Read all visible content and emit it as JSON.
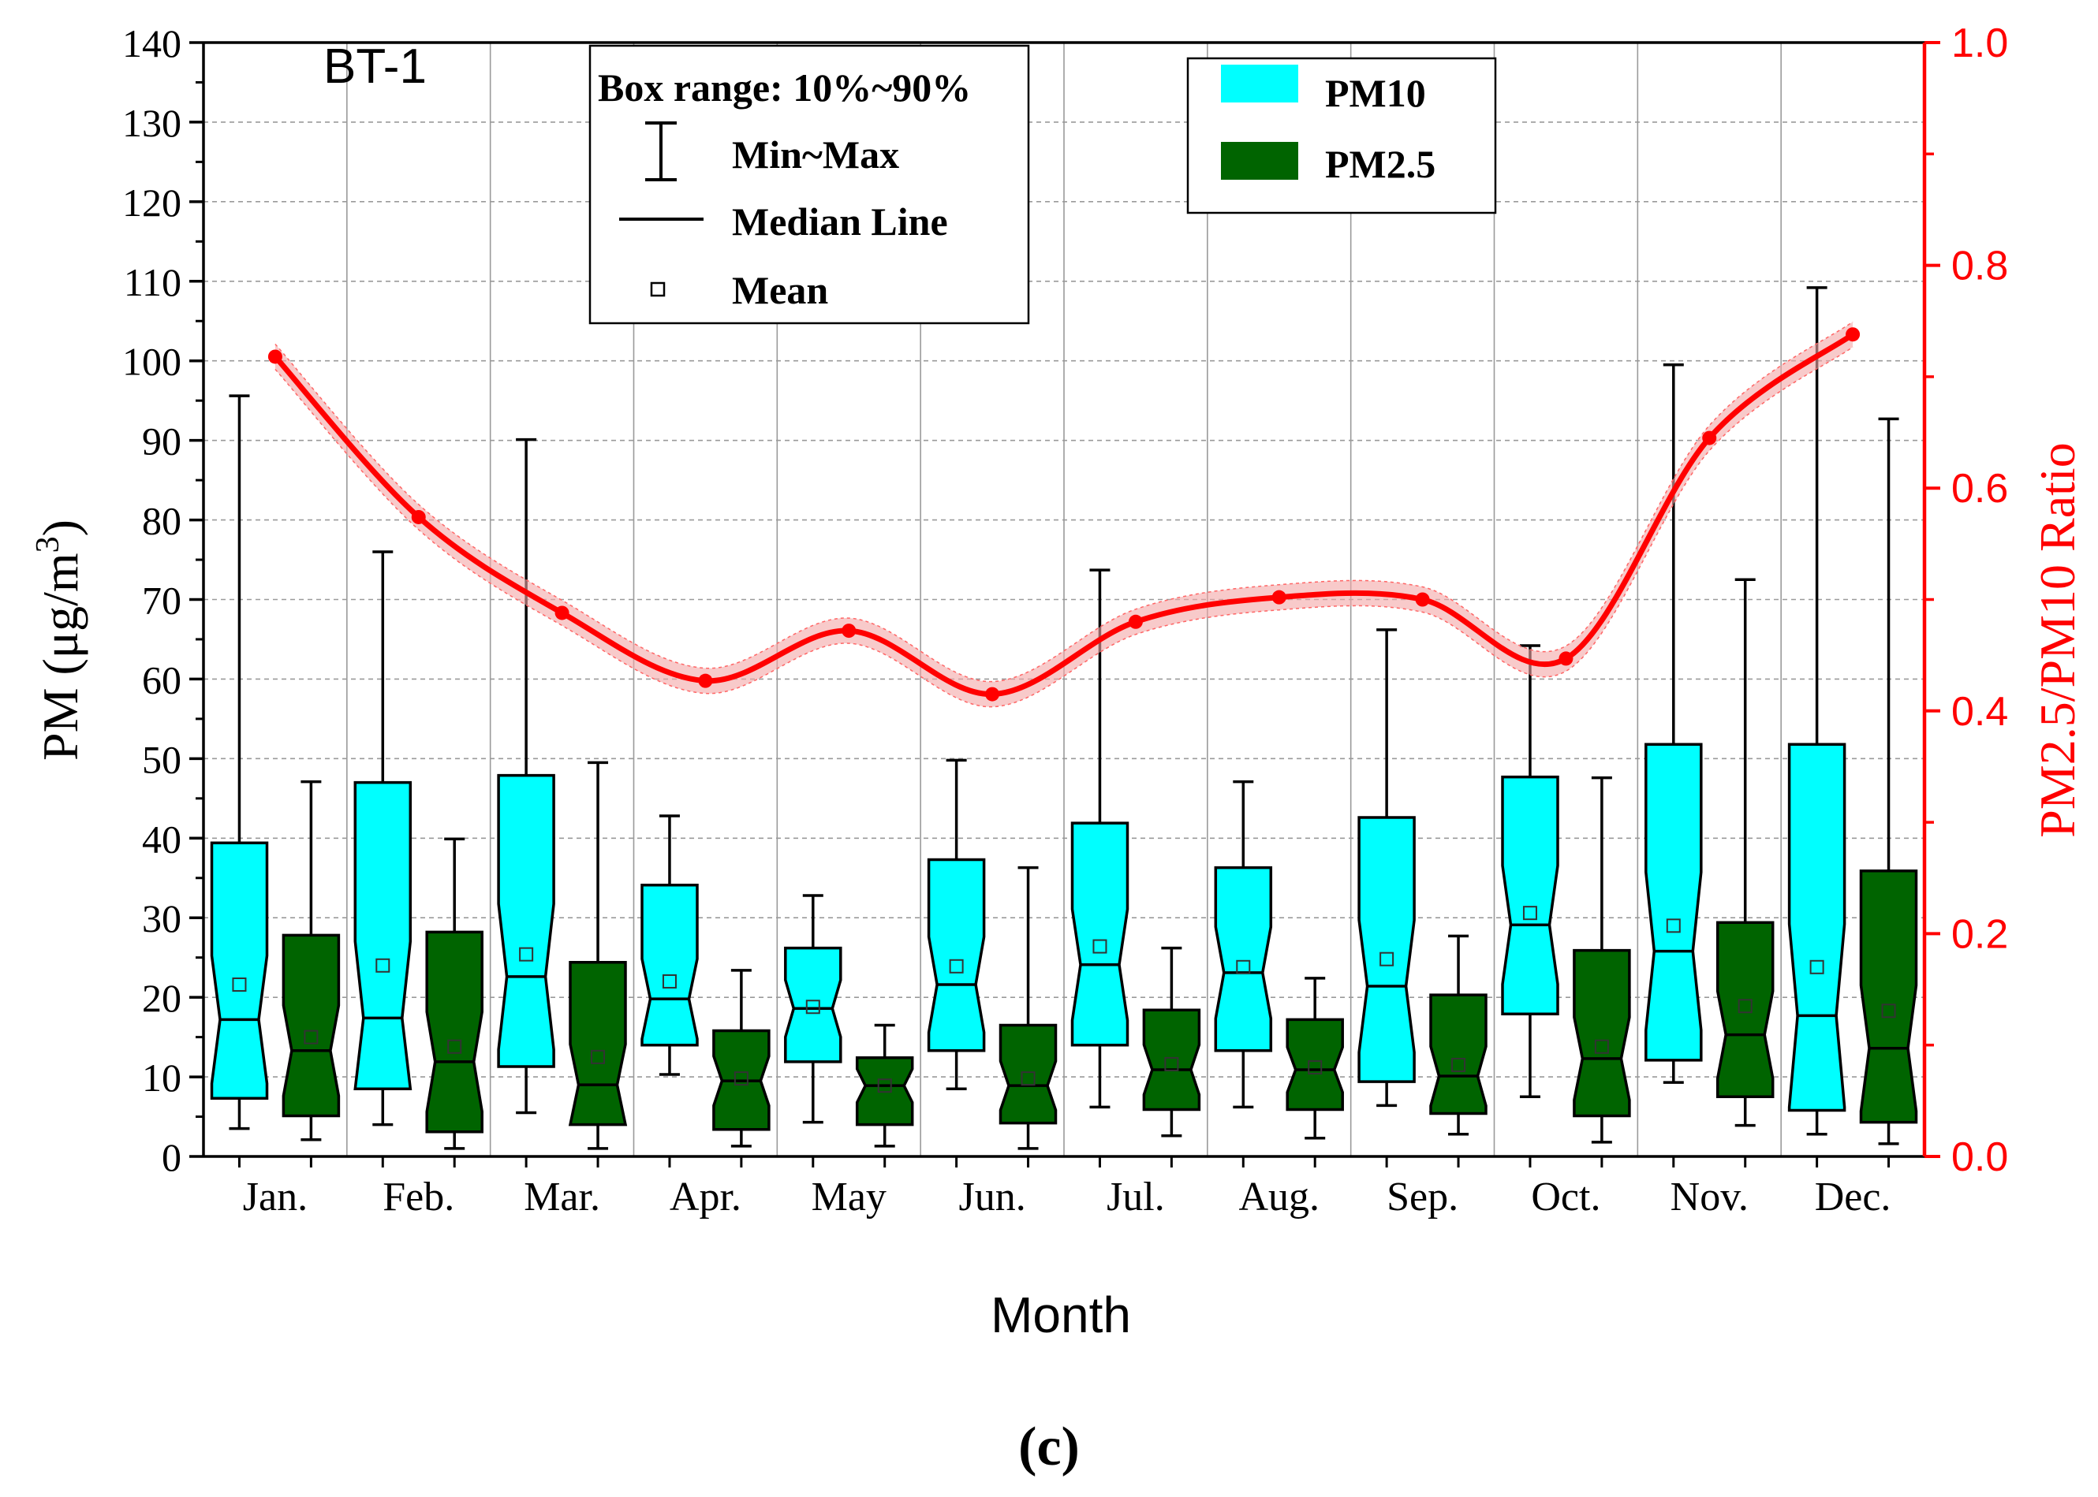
{
  "chart_data": {
    "type": "box",
    "panel_label": "BT-1",
    "subfigure_label": "(c)",
    "xlabel": "Month",
    "ylabel_left_prefix": "PM (μg/m",
    "ylabel_left_sup": "3",
    "ylabel_left_suffix": ")",
    "ylabel_right": "PM2.5/PM10 Ratio",
    "categories": [
      "Jan.",
      "Feb.",
      "Mar.",
      "Apr.",
      "May",
      "Jun.",
      "Jul.",
      "Aug.",
      "Sep.",
      "Oct.",
      "Nov.",
      "Dec."
    ],
    "y_left": {
      "min": 0,
      "max": 140,
      "ticks": [
        0,
        10,
        20,
        30,
        40,
        50,
        60,
        70,
        80,
        90,
        100,
        110,
        120,
        130,
        140
      ]
    },
    "y_right": {
      "min": 0,
      "max": 1.0,
      "ticks": [
        "0.0",
        "0.2",
        "0.4",
        "0.6",
        "0.8",
        "1.0"
      ]
    },
    "grid": true,
    "legend_box_stats": {
      "title": "Box range: 10%~90%",
      "items": [
        "Min~Max",
        "Median Line",
        "Mean"
      ]
    },
    "legend_series": {
      "position": "top-right",
      "items": [
        {
          "name": "PM10",
          "color": "#00ffff"
        },
        {
          "name": "PM2.5",
          "color": "#006400"
        }
      ]
    },
    "colors": {
      "pm10": "#00ffff",
      "pm25": "#006400",
      "ratio": "#ff0000",
      "ratio_band": "#f4a7a7"
    },
    "series": [
      {
        "name": "PM10",
        "boxes": [
          {
            "min": 3.5,
            "p10": 7.3,
            "median": 17.2,
            "mean": 21.6,
            "p90": 39.4,
            "max": 95.6
          },
          {
            "min": 4.0,
            "p10": 8.5,
            "median": 17.4,
            "mean": 24.0,
            "p90": 47.0,
            "max": 76.0
          },
          {
            "min": 5.5,
            "p10": 11.3,
            "median": 22.6,
            "mean": 25.4,
            "p90": 47.9,
            "max": 90.1
          },
          {
            "min": 10.3,
            "p10": 14.0,
            "median": 19.8,
            "mean": 22.0,
            "p90": 34.1,
            "max": 42.8
          },
          {
            "min": 4.3,
            "p10": 11.9,
            "median": 18.6,
            "mean": 18.8,
            "p90": 26.2,
            "max": 32.8
          },
          {
            "min": 8.5,
            "p10": 13.3,
            "median": 21.6,
            "mean": 23.9,
            "p90": 37.3,
            "max": 49.8
          },
          {
            "min": 6.2,
            "p10": 14.0,
            "median": 24.1,
            "mean": 26.4,
            "p90": 41.9,
            "max": 73.7
          },
          {
            "min": 6.2,
            "p10": 13.3,
            "median": 23.1,
            "mean": 23.8,
            "p90": 36.3,
            "max": 47.1
          },
          {
            "min": 6.4,
            "p10": 9.4,
            "median": 21.4,
            "mean": 24.8,
            "p90": 42.6,
            "max": 66.2
          },
          {
            "min": 7.5,
            "p10": 17.9,
            "median": 29.1,
            "mean": 30.6,
            "p90": 47.7,
            "max": 64.2
          },
          {
            "min": 9.3,
            "p10": 12.1,
            "median": 25.8,
            "mean": 29.0,
            "p90": 51.8,
            "max": 99.5
          },
          {
            "min": 2.8,
            "p10": 5.8,
            "median": 17.7,
            "mean": 23.8,
            "p90": 51.8,
            "max": 109.2
          }
        ]
      },
      {
        "name": "PM2.5",
        "boxes": [
          {
            "min": 2.1,
            "p10": 5.1,
            "median": 13.3,
            "mean": 15.0,
            "p90": 27.8,
            "max": 47.1
          },
          {
            "min": 1.0,
            "p10": 3.1,
            "median": 11.9,
            "mean": 13.8,
            "p90": 28.2,
            "max": 39.9
          },
          {
            "min": 1.0,
            "p10": 4.0,
            "median": 9.0,
            "mean": 12.5,
            "p90": 24.4,
            "max": 49.5
          },
          {
            "min": 1.3,
            "p10": 3.4,
            "median": 9.5,
            "mean": 9.8,
            "p90": 15.8,
            "max": 23.4
          },
          {
            "min": 1.3,
            "p10": 4.0,
            "median": 8.9,
            "mean": 8.9,
            "p90": 12.4,
            "max": 16.5
          },
          {
            "min": 1.0,
            "p10": 4.2,
            "median": 8.9,
            "mean": 9.8,
            "p90": 16.5,
            "max": 36.3
          },
          {
            "min": 2.6,
            "p10": 5.9,
            "median": 10.9,
            "mean": 11.6,
            "p90": 18.4,
            "max": 26.2
          },
          {
            "min": 2.3,
            "p10": 5.9,
            "median": 10.9,
            "mean": 11.2,
            "p90": 17.2,
            "max": 22.4
          },
          {
            "min": 2.8,
            "p10": 5.4,
            "median": 10.1,
            "mean": 11.5,
            "p90": 20.3,
            "max": 27.7
          },
          {
            "min": 1.8,
            "p10": 5.1,
            "median": 12.3,
            "mean": 13.8,
            "p90": 25.9,
            "max": 47.6
          },
          {
            "min": 3.9,
            "p10": 7.5,
            "median": 15.3,
            "mean": 18.9,
            "p90": 29.4,
            "max": 72.5
          },
          {
            "min": 1.6,
            "p10": 4.3,
            "median": 13.6,
            "mean": 18.3,
            "p90": 35.9,
            "max": 92.7
          }
        ]
      },
      {
        "name": "PM2.5/PM10 Ratio",
        "axis": "right",
        "x": [
          "Jan.",
          "Feb.",
          "Mar.",
          "Apr.",
          "May",
          "Jun.",
          "Jul.",
          "Aug.",
          "Sep.",
          "Oct.",
          "Nov.",
          "Dec."
        ],
        "values": [
          0.718,
          0.574,
          0.488,
          0.427,
          0.472,
          0.415,
          0.48,
          0.502,
          0.5,
          0.447,
          0.645,
          0.738
        ]
      }
    ]
  }
}
